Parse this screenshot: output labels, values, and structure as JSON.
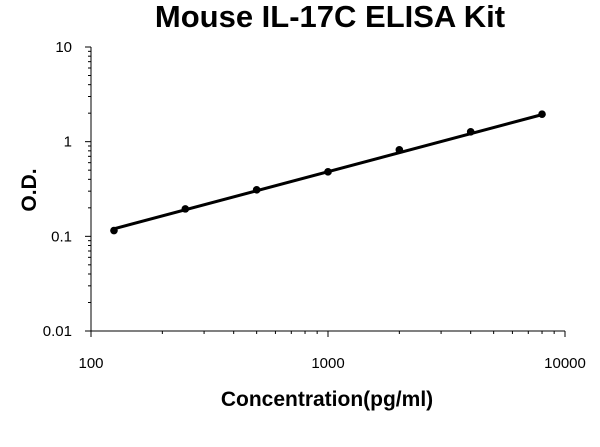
{
  "chart_data": {
    "type": "line",
    "title": "Mouse IL-17C ELISA Kit",
    "xlabel": "Concentration(pg/ml)",
    "ylabel": "O.D.",
    "x_scale": "log",
    "y_scale": "log",
    "xlim": [
      100,
      10000
    ],
    "ylim": [
      0.01,
      10
    ],
    "x_ticks": [
      "100",
      "1000",
      "10000"
    ],
    "y_ticks": [
      "0.01",
      "0.1",
      "1",
      "10"
    ],
    "grid": false,
    "legend": "none",
    "series": [
      {
        "x": [
          125,
          250,
          500,
          1000,
          2000,
          4000,
          8000
        ],
        "y": [
          0.115,
          0.195,
          0.31,
          0.48,
          0.82,
          1.27,
          1.95
        ]
      }
    ],
    "fit_line": {
      "x": [
        125,
        8000
      ],
      "y": [
        0.12,
        1.93
      ]
    },
    "colors": {
      "line": "#000000",
      "marker": "#000000",
      "axis": "#000000"
    }
  }
}
